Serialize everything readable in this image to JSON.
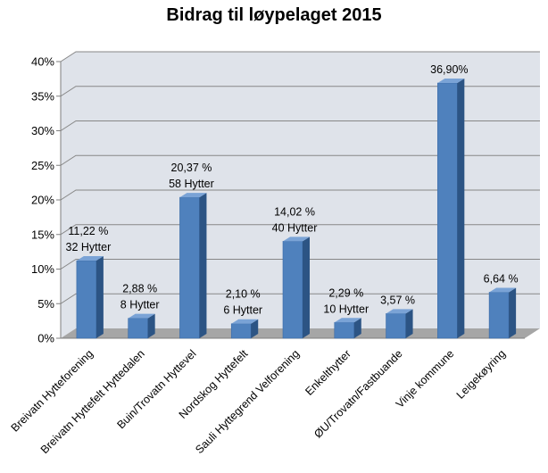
{
  "chart_data": {
    "type": "bar",
    "title": "Bidrag til løypelaget 2015",
    "xlabel": "",
    "ylabel": "",
    "ylim": [
      0,
      40
    ],
    "ytick_step": 5,
    "ytick_labels": [
      "0%",
      "5%",
      "10%",
      "15%",
      "20%",
      "25%",
      "30%",
      "35%",
      "40%"
    ],
    "grid": true,
    "legend": "none",
    "categories": [
      "Breivatn Hytteforening",
      "Breivatn Hyttefelt Hyttedalen",
      "Buin/Trovatn Hyttevel",
      "Nordskog Hyttefelt",
      "Sauli Hyttegrend Velforening",
      "Enkelthytter",
      "ØU/Trovatn/Fastbuande",
      "Vinje kommune",
      "Leigekøyring"
    ],
    "values": [
      11.22,
      2.88,
      20.37,
      2.1,
      14.02,
      2.29,
      3.57,
      36.9,
      6.64
    ],
    "data_labels": [
      [
        "11,22 %",
        "32 Hytter"
      ],
      [
        "2,88 %",
        "8 Hytter"
      ],
      [
        "20,37 %",
        "58 Hytter"
      ],
      [
        "2,10 %",
        "6 Hytter"
      ],
      [
        "14,02 %",
        "40 Hytter"
      ],
      [
        "2,29 %",
        "10 Hytter"
      ],
      [
        "3,57 %"
      ],
      [
        "36,90%"
      ],
      [
        "6,64 %"
      ]
    ],
    "colors": {
      "bar_front": "#4f81bd",
      "bar_side": "#2c5484",
      "bar_top": "#7aa3d6",
      "wall": "#dfe3ea",
      "floor": "#a6a6a6",
      "grid": "#878787"
    }
  }
}
